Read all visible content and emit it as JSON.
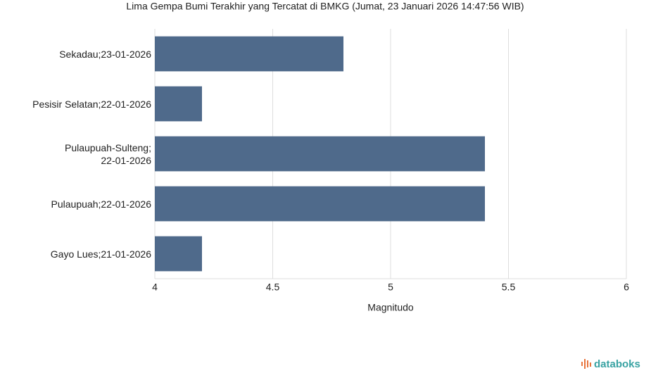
{
  "chart_data": {
    "type": "bar",
    "orientation": "horizontal",
    "title": "Lima Gempa Bumi Terakhir yang Tercatat di BMKG (Jumat, 23 Januari 2026 14:47:56 WIB)",
    "categories": [
      "Sekadau;23-01-2026",
      "Pesisir Selatan;22-01-2026",
      "Pulaupuah-Sulteng;\n22-01-2026",
      "Pulaupuah;22-01-2026",
      "Gayo Lues;21-01-2026"
    ],
    "values": [
      4.8,
      4.2,
      5.4,
      5.4,
      4.2
    ],
    "color": "#4f6a8b",
    "xlabel": "Magnitudo",
    "xlim": [
      4,
      6
    ],
    "xticks": [
      4,
      4.5,
      5,
      5.5,
      6
    ],
    "grid": true,
    "source_logo": "databoks"
  }
}
